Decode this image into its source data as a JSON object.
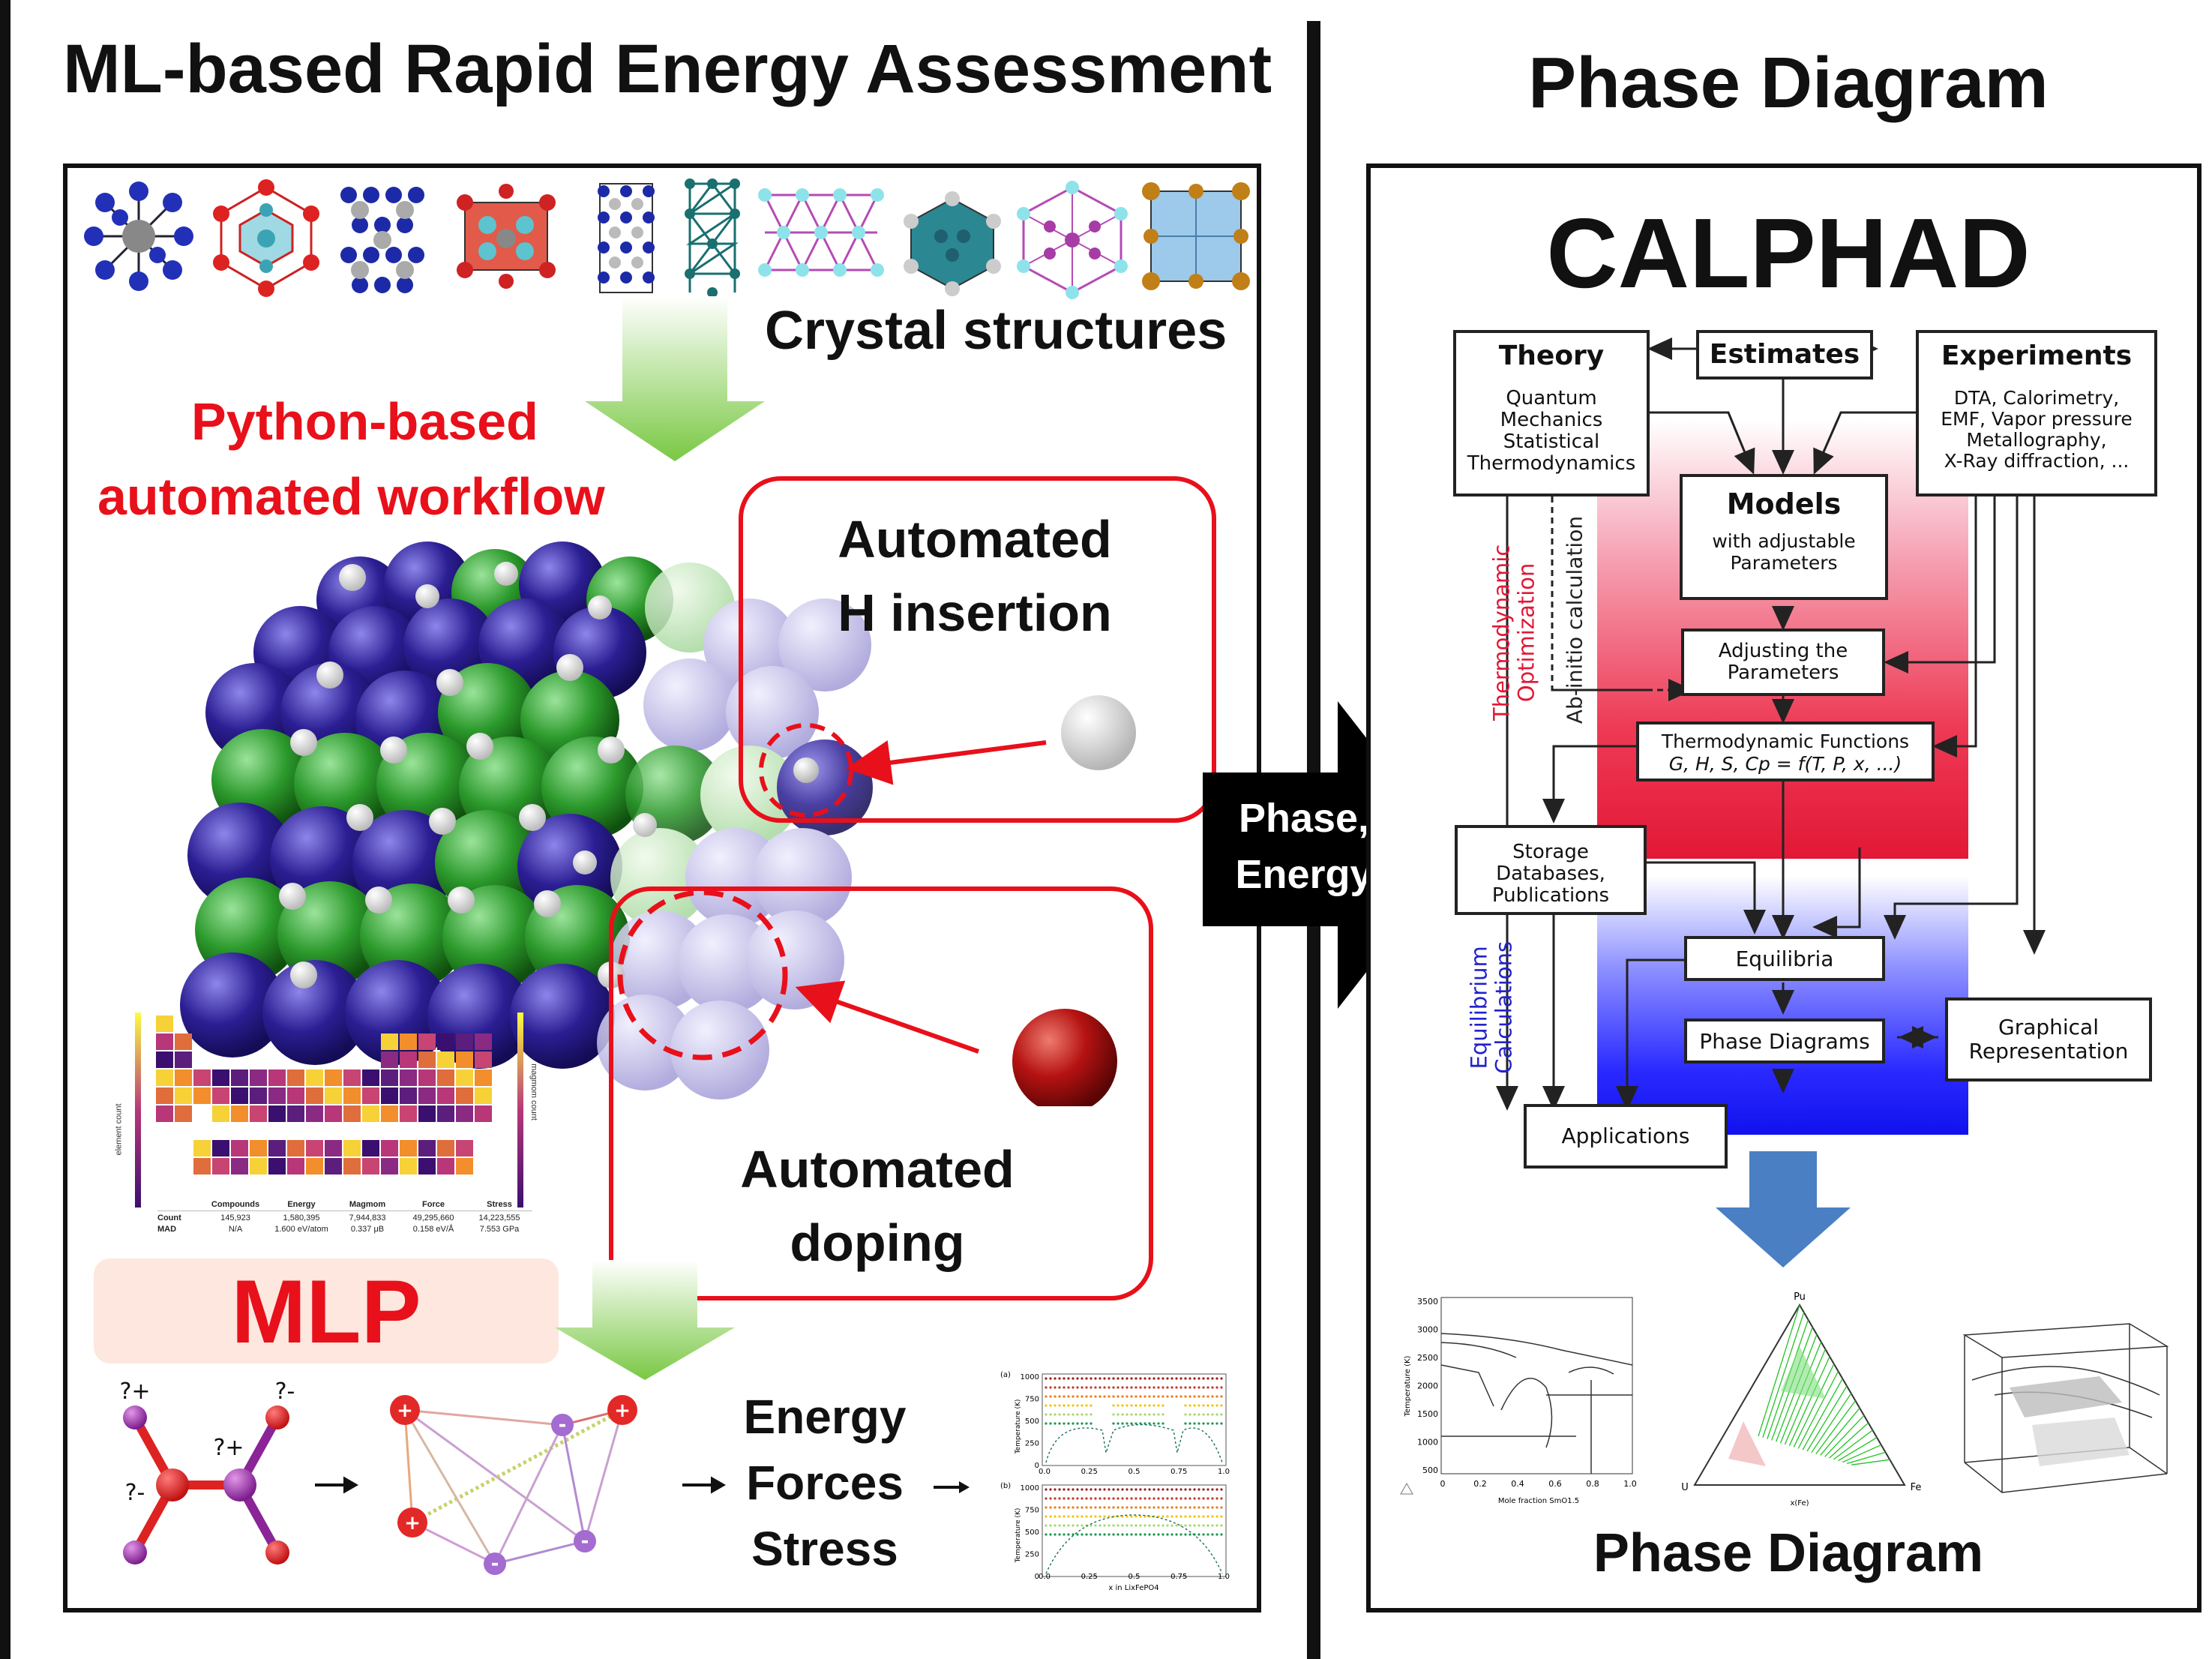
{
  "left": {
    "title": "ML-based Rapid Energy Assessment",
    "crystal_label": "Crystal structures",
    "workflow_label_1": "Python-based",
    "workflow_label_2": "automated workflow",
    "h_insertion_1": "Automated",
    "h_insertion_2": "H insertion",
    "doping_1": "Automated",
    "doping_2": "doping",
    "mlp_label": "MLP",
    "outputs": [
      "Energy",
      "Forces",
      "Stress"
    ],
    "charges": [
      "?+",
      "?-",
      "?+",
      "?-"
    ],
    "table": {
      "headers": [
        "Compounds",
        "Energy",
        "Magmom",
        "Force",
        "Stress"
      ],
      "rows": [
        {
          "label": "Count",
          "values": [
            "145,923",
            "1,580,395",
            "7,944,833",
            "49,295,660",
            "14,223,555"
          ]
        },
        {
          "label": "MAD",
          "values": [
            "N/A",
            "1.600 eV/atom",
            "0.337 μB",
            "0.158 eV/Å",
            "7.553 GPa"
          ]
        }
      ]
    },
    "periodic_axis_left": "element count",
    "periodic_axis_right": "magmom count",
    "mini_plot": {
      "panel_a": "(a)",
      "panel_b": "(b)",
      "ylabel": "Temperature (K)",
      "yticks": [
        "1000",
        "750",
        "500",
        "250",
        "0"
      ],
      "xticks": [
        "0.0",
        "0.25",
        "0.5",
        "0.75",
        "1.0"
      ],
      "xlabel": "x in LixFePO4"
    }
  },
  "arrow": {
    "label_1": "Phase,",
    "label_2": "Energy"
  },
  "right": {
    "title": "Phase Diagram",
    "calphad": "CALPHAD",
    "theory": {
      "title": "Theory",
      "lines": [
        "Quantum",
        "Mechanics",
        "Statistical",
        "Thermodynamics"
      ]
    },
    "estimates": "Estimates",
    "experiments": {
      "title": "Experiments",
      "lines": [
        "DTA, Calorimetry,",
        "EMF, Vapor pressure",
        "Metallography,",
        "X-Ray diffraction, ..."
      ]
    },
    "models": {
      "title": "Models",
      "lines": [
        "with adjustable",
        "Parameters"
      ]
    },
    "adjusting": [
      "Adjusting the",
      "Parameters"
    ],
    "thermo_functions": [
      "Thermodynamic Functions",
      "G, H, S, Cp = f(T, P, x, ...)"
    ],
    "storage": [
      "Storage",
      "Databases,",
      "Publications"
    ],
    "equilibria": "Equilibria",
    "phase_diagrams": "Phase Diagrams",
    "graphical": [
      "Graphical",
      "Representation"
    ],
    "applications": "Applications",
    "side_thermo": [
      "Thermodynamic",
      "Optimization"
    ],
    "side_abinitio": "Ab-initio calculation",
    "side_equil": [
      "Equilibrium",
      "Calculations"
    ],
    "bottom_label": "Phase Diagram",
    "mini1": {
      "yticks": [
        "3500",
        "3000",
        "2500",
        "2000",
        "1500",
        "1000",
        "500"
      ],
      "xticks": [
        "0",
        "0.2",
        "0.4",
        "0.6",
        "0.8",
        "1.0"
      ],
      "ylabel": "Temperature (K)",
      "xlabel": "Mole fraction SmO1.5"
    },
    "mini2": {
      "top": "Pu",
      "left": "U",
      "right": "Fe",
      "xlabel": "x(Fe)"
    }
  },
  "colors": {
    "red": "#e8101a",
    "purple": "#2b1e93",
    "green": "#2c9a2c",
    "blue_arrow": "#4b7fc4"
  }
}
